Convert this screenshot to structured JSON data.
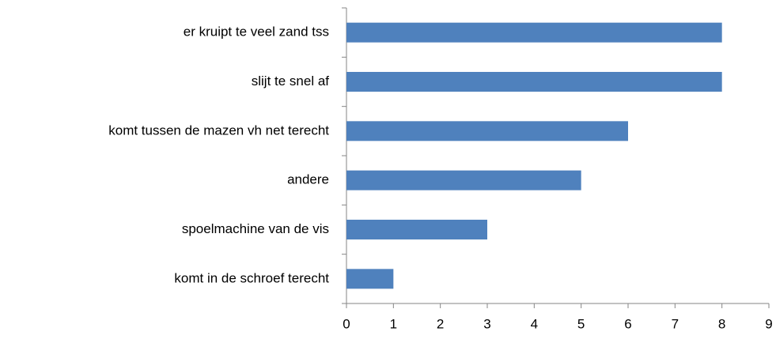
{
  "chart_data": {
    "type": "bar",
    "orientation": "horizontal",
    "categories": [
      "er kruipt te veel zand tss",
      "slijt te snel af",
      "komt tussen de mazen vh net terecht",
      "andere",
      "spoelmachine van de vis",
      "komt in de schroef terecht"
    ],
    "values": [
      8,
      8,
      6,
      5,
      3,
      1
    ],
    "color": "#4f81bd",
    "xlim": [
      0,
      9
    ],
    "xticks": [
      0,
      1,
      2,
      3,
      4,
      5,
      6,
      7,
      8,
      9
    ],
    "grid": false
  }
}
